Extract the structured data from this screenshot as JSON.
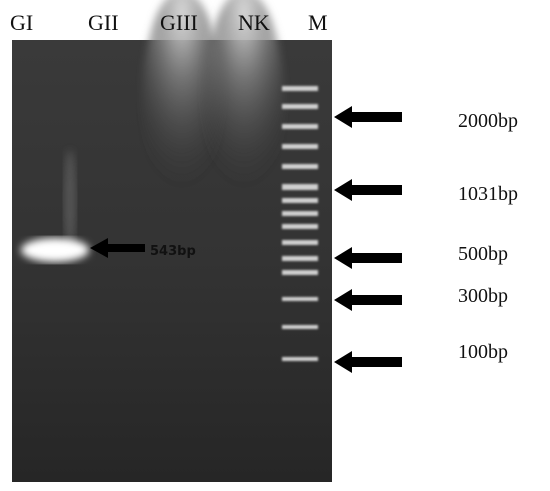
{
  "lanes": [
    "GI",
    "GII",
    "GIII",
    "NK",
    "M"
  ],
  "band_label": "543bp",
  "markers": [
    "2000bp",
    "1031bp",
    "500bp",
    "300bp",
    "100bp"
  ]
}
